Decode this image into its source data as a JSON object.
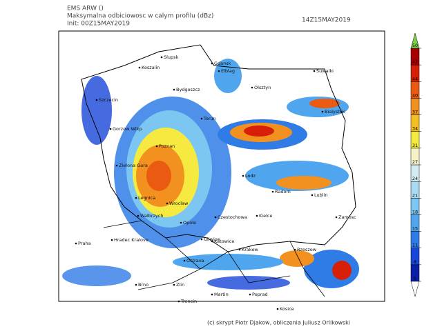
{
  "header": {
    "model": "EMS ARW ()",
    "title": "Maksymalna odbiciowosc w calym profilu (dBz)",
    "init": "Init: 00Z15MAY2019",
    "valid": "14Z15MAY2019"
  },
  "colorbar": {
    "levels": [
      5,
      8,
      11,
      15,
      18,
      21,
      24,
      27,
      31,
      34,
      37,
      40,
      44,
      47,
      50
    ],
    "colors": [
      "#0a1fa8",
      "#1846d8",
      "#2f7ce6",
      "#4fa6ee",
      "#7cc6f2",
      "#a8dcf4",
      "#d2eef4",
      "#f7f3c8",
      "#f6ea40",
      "#f2c020",
      "#f29020",
      "#ea5a10",
      "#d82008",
      "#a80000"
    ],
    "over_color": "#7ed04a",
    "under_color": "#ffffff"
  },
  "cities": [
    "Slupsk",
    "Koszalin",
    "Gdansk",
    "Elblag",
    "Suwalki",
    "Szczecin",
    "Olsztyn",
    "Bydgoszcz",
    "Bialystok",
    "Torun",
    "Gorzow Wlkp",
    "Poznan",
    "Zielona Gora",
    "Lodz",
    "Radom",
    "Lublin",
    "Legnica",
    "Wroclaw",
    "Walbrzych",
    "Opole",
    "Czestochowa",
    "Kielce",
    "Zamosc",
    "Praha",
    "Hradec Kralove",
    "Gliwice",
    "Katowice",
    "Krakow",
    "Rzeszow",
    "Ostrava",
    "Brno",
    "Zlin",
    "Trencin",
    "Martin",
    "Poprad",
    "Kosice"
  ],
  "footer": "(c) skrypt Piotr Djakow, obliczenia Juliusz Orlikowski"
}
